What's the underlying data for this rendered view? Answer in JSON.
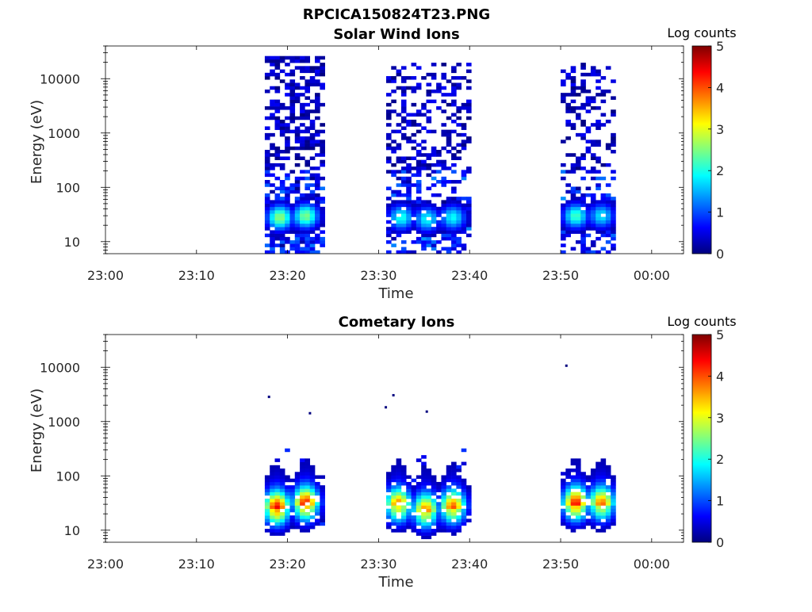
{
  "figure_title": "RPCICA150824T23.PNG",
  "colorscale": {
    "stops": [
      "#00007f",
      "#0000ff",
      "#007fff",
      "#00ffff",
      "#7fff7f",
      "#ffff00",
      "#ff7f00",
      "#ff0000",
      "#7f0000"
    ]
  },
  "chart_data": [
    {
      "type": "heatmap",
      "title": "Solar Wind Ions",
      "xlabel": "Time",
      "ylabel": "Energy (eV)",
      "yscale": "log",
      "ylim": [
        6,
        40000
      ],
      "xlim_minutes": [
        0,
        63.5
      ],
      "xticks": [
        {
          "minutes": 0,
          "label": "23:00"
        },
        {
          "minutes": 10,
          "label": "23:10"
        },
        {
          "minutes": 20,
          "label": "23:20"
        },
        {
          "minutes": 30,
          "label": "23:30"
        },
        {
          "minutes": 40,
          "label": "23:40"
        },
        {
          "minutes": 50,
          "label": "23:50"
        },
        {
          "minutes": 60,
          "label": "00:00"
        }
      ],
      "yticks": [
        {
          "value": 10,
          "label": "10"
        },
        {
          "value": 100,
          "label": "100"
        },
        {
          "value": 1000,
          "label": "1000"
        },
        {
          "value": 10000,
          "label": "10000"
        }
      ],
      "colorbar": {
        "label": "Log counts",
        "min": 0,
        "max": 5,
        "ticks": [
          "0",
          "1",
          "2",
          "3",
          "4",
          "5"
        ]
      },
      "segments": [
        {
          "start": "23:17:30",
          "end": "23:23:50",
          "background_density": 0.55,
          "max_energy": 25000
        },
        {
          "start": "23:30:50",
          "end": "23:39:40",
          "background_density": 0.38,
          "max_energy": 20000
        },
        {
          "start": "23:50:00",
          "end": "23:55:50",
          "background_density": 0.35,
          "max_energy": 20000
        }
      ],
      "peaks": [
        {
          "time": "23:19:10",
          "energy_center": 28,
          "log_counts": 2.6
        },
        {
          "time": "23:22:00",
          "energy_center": 30,
          "log_counts": 2.5
        },
        {
          "time": "23:32:30",
          "energy_center": 28,
          "log_counts": 2.0
        },
        {
          "time": "23:35:20",
          "energy_center": 26,
          "log_counts": 1.9
        },
        {
          "time": "23:38:10",
          "energy_center": 28,
          "log_counts": 1.9
        },
        {
          "time": "23:51:40",
          "energy_center": 30,
          "log_counts": 2.2
        },
        {
          "time": "23:54:30",
          "energy_center": 30,
          "log_counts": 1.8
        }
      ]
    },
    {
      "type": "heatmap",
      "title": "Cometary Ions",
      "xlabel": "Time",
      "ylabel": "Energy (eV)",
      "yscale": "log",
      "ylim": [
        6,
        40000
      ],
      "xlim_minutes": [
        0,
        63.5
      ],
      "xticks": [
        {
          "minutes": 0,
          "label": "23:00"
        },
        {
          "minutes": 10,
          "label": "23:10"
        },
        {
          "minutes": 20,
          "label": "23:20"
        },
        {
          "minutes": 30,
          "label": "23:30"
        },
        {
          "minutes": 40,
          "label": "23:40"
        },
        {
          "minutes": 50,
          "label": "23:50"
        },
        {
          "minutes": 60,
          "label": "00:00"
        }
      ],
      "yticks": [
        {
          "value": 10,
          "label": "10"
        },
        {
          "value": 100,
          "label": "100"
        },
        {
          "value": 1000,
          "label": "1000"
        },
        {
          "value": 10000,
          "label": "10000"
        }
      ],
      "colorbar": {
        "label": "Log counts",
        "min": 0,
        "max": 5,
        "ticks": [
          "0",
          "1",
          "2",
          "3",
          "4",
          "5"
        ]
      },
      "segments": [
        {
          "start": "23:17:30",
          "end": "23:23:50",
          "background_density": 0.0,
          "max_energy": 400
        },
        {
          "start": "23:30:50",
          "end": "23:39:40",
          "background_density": 0.0,
          "max_energy": 400
        },
        {
          "start": "23:50:00",
          "end": "23:55:50",
          "background_density": 0.0,
          "max_energy": 250
        }
      ],
      "peaks": [
        {
          "time": "23:18:50",
          "energy_center": 25,
          "log_counts": 3.6
        },
        {
          "time": "23:22:00",
          "energy_center": 30,
          "log_counts": 3.5
        },
        {
          "time": "23:32:10",
          "energy_center": 28,
          "log_counts": 3.1
        },
        {
          "time": "23:35:10",
          "energy_center": 22,
          "log_counts": 3.0
        },
        {
          "time": "23:38:10",
          "energy_center": 26,
          "log_counts": 3.1
        },
        {
          "time": "23:51:40",
          "energy_center": 30,
          "log_counts": 3.5
        },
        {
          "time": "23:54:30",
          "energy_center": 30,
          "log_counts": 3.0
        }
      ],
      "isolated_points": [
        {
          "time": "23:17:50",
          "energy": 2800
        },
        {
          "time": "23:30:40",
          "energy": 1800
        },
        {
          "time": "23:31:30",
          "energy": 3000
        },
        {
          "time": "23:35:10",
          "energy": 1500
        },
        {
          "time": "23:22:20",
          "energy": 1400
        },
        {
          "time": "23:50:30",
          "energy": 10500
        }
      ]
    }
  ]
}
